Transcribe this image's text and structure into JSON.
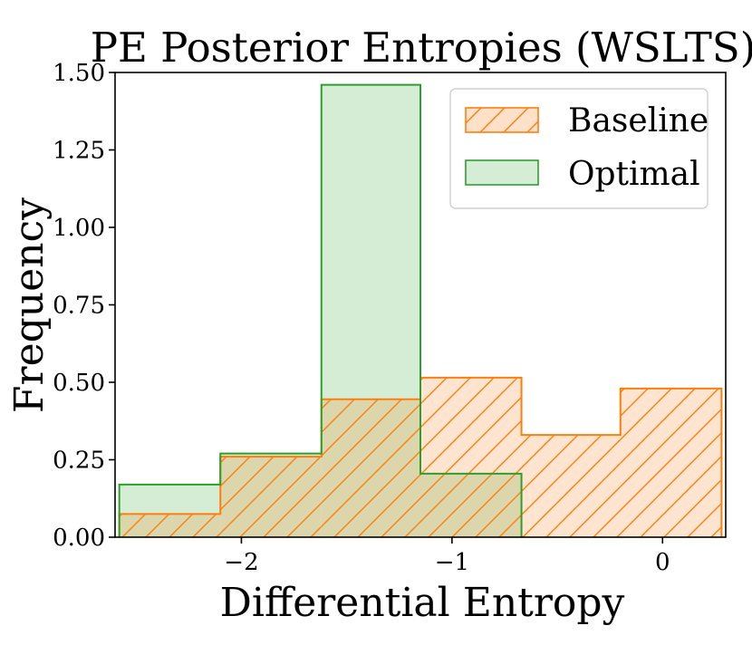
{
  "chart_data": {
    "type": "histogram",
    "title": "PE Posterior Entropies (WSLTS)",
    "xlabel": "Differential Entropy",
    "ylabel": "Frequency",
    "xlim": [
      -2.6,
      0.3
    ],
    "ylim": [
      0,
      1.5
    ],
    "x_ticks": [
      -2,
      -1,
      0
    ],
    "x_tick_labels": [
      "−2",
      "−1",
      "0"
    ],
    "y_ticks": [
      0,
      0.25,
      0.5,
      0.75,
      1.0,
      1.25,
      1.5
    ],
    "y_tick_labels": [
      "0.00",
      "0.25",
      "0.50",
      "0.75",
      "1.00",
      "1.25",
      "1.50"
    ],
    "legend_position": "top-right",
    "series": [
      {
        "name": "Baseline",
        "color": "#ff7f0e",
        "fill": "#ffe0c8",
        "hatch": "diagonal",
        "bins": [
          {
            "x0": -2.58,
            "x1": -2.1,
            "value": 0.075
          },
          {
            "x0": -2.1,
            "x1": -1.62,
            "value": 0.26
          },
          {
            "x0": -1.62,
            "x1": -1.15,
            "value": 0.445
          },
          {
            "x0": -1.15,
            "x1": -0.67,
            "value": 0.515
          },
          {
            "x0": -0.67,
            "x1": -0.2,
            "value": 0.33
          },
          {
            "x0": -0.2,
            "x1": 0.28,
            "value": 0.48
          }
        ]
      },
      {
        "name": "Optimal",
        "color": "#2ca02c",
        "fill": "#d4edd4",
        "hatch": "none",
        "bins": [
          {
            "x0": -2.58,
            "x1": -2.1,
            "value": 0.17
          },
          {
            "x0": -2.1,
            "x1": -1.62,
            "value": 0.27
          },
          {
            "x0": -1.62,
            "x1": -1.15,
            "value": 1.46
          },
          {
            "x0": -1.15,
            "x1": -0.67,
            "value": 0.205
          }
        ]
      }
    ]
  }
}
